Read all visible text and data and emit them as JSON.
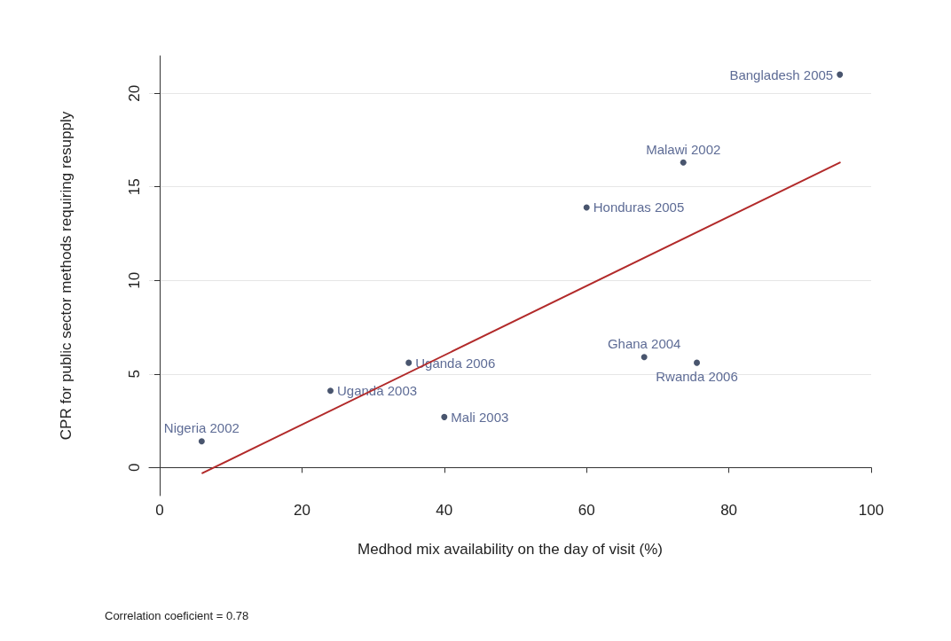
{
  "chart_data": {
    "type": "scatter",
    "xlabel": "Medhod mix availability on the day of visit (%)",
    "ylabel": "CPR for public sector methods requiring resupply",
    "xlim": [
      -1.5,
      100
    ],
    "xticks": [
      0,
      20,
      40,
      60,
      80,
      100
    ],
    "ylim": [
      -1.5,
      22
    ],
    "yticks": [
      0,
      5,
      10,
      15,
      20
    ],
    "grid": "y",
    "marker": "circle",
    "annotations": [
      "Correlation coeficient = 0.78"
    ],
    "series": [
      {
        "color": "#1c2b4a",
        "x": [
          95.6,
          73.6,
          60,
          5.9,
          24,
          35,
          40,
          68.1,
          75.5
        ],
        "values": [
          21,
          16.3,
          13.9,
          1.4,
          4.1,
          5.6,
          2.7,
          5.9,
          5.6
        ],
        "value_labels": [
          "Bangladesh 2005",
          "Malawi 2002",
          "Honduras 2005",
          "Nigeria 2002",
          "Uganda 2003",
          "Uganda 2006",
          "Mali 2003",
          "Ghana 2004",
          "Rwanda 2006"
        ]
      },
      {
        "type": "line",
        "color": "#b22a2a",
        "x": [
          6,
          95.6
        ],
        "values": [
          -0.3,
          16.3
        ],
        "marker": "none",
        "line_style": "solid"
      }
    ]
  }
}
